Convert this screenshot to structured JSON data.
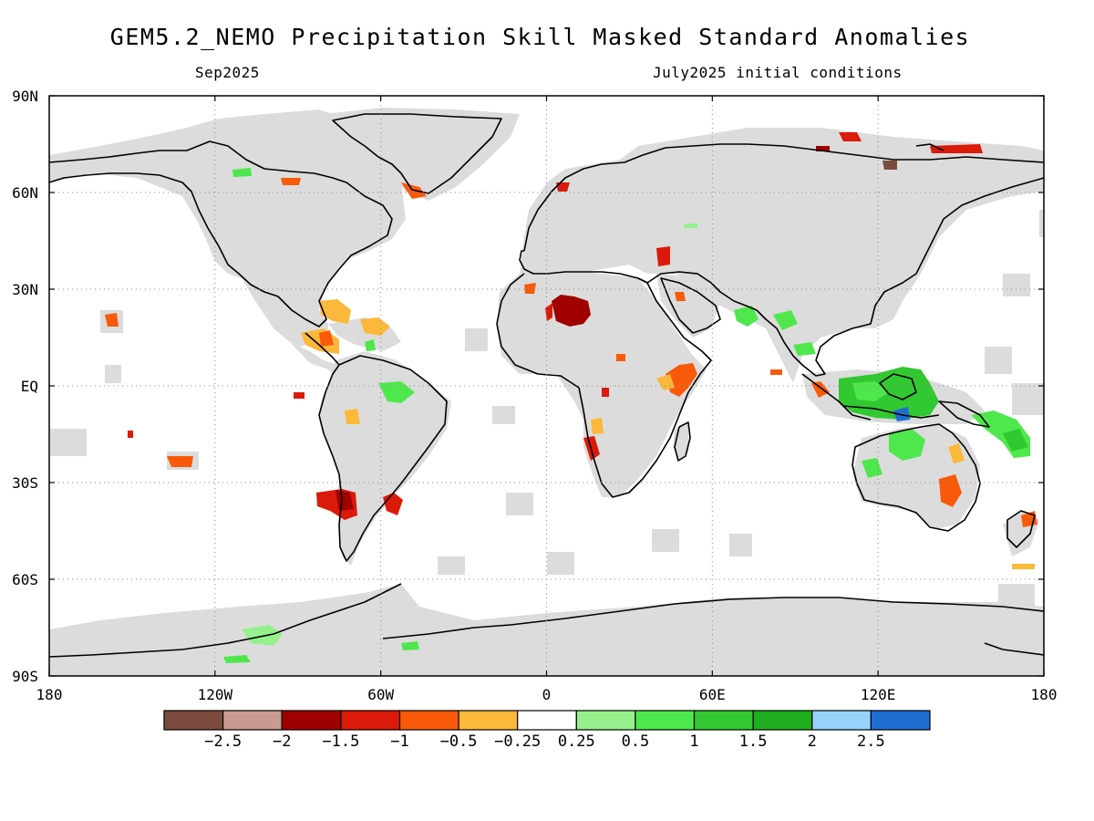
{
  "header": {
    "title": "GEM5.2_NEMO Precipitation Skill Masked Standard Anomalies",
    "valid_month": "Sep2025",
    "initial_conditions": "July2025 initial conditions"
  },
  "map": {
    "lon_range": [
      -180,
      180
    ],
    "lat_range": [
      -90,
      90
    ],
    "lon_ticks": [
      {
        "value": -180,
        "label": "180"
      },
      {
        "value": -120,
        "label": "120W"
      },
      {
        "value": -60,
        "label": "60W"
      },
      {
        "value": 0,
        "label": "0"
      },
      {
        "value": 60,
        "label": "60E"
      },
      {
        "value": 120,
        "label": "120E"
      },
      {
        "value": 180,
        "label": "180"
      }
    ],
    "lat_ticks": [
      {
        "value": 90,
        "label": "90N"
      },
      {
        "value": 60,
        "label": "60N"
      },
      {
        "value": 30,
        "label": "30N"
      },
      {
        "value": 0,
        "label": "EQ"
      },
      {
        "value": -30,
        "label": "30S"
      },
      {
        "value": -60,
        "label": "60S"
      },
      {
        "value": -90,
        "label": "90S"
      }
    ],
    "grid_lines": "dotted",
    "land_mask_color": "#dcdcdc",
    "coastline_color": "#000000"
  },
  "legend": {
    "colors": [
      "#7b4c3e",
      "#c99a8f",
      "#a00000",
      "#dc1a0a",
      "#f85a0a",
      "#fbb83a",
      "#ffffff",
      "#96f08c",
      "#4ee84c",
      "#32c832",
      "#1eae1e",
      "#96d2fa",
      "#1e6ed2"
    ],
    "labels": [
      "−2.5",
      "−2",
      "−1.5",
      "−1",
      "−0.5",
      "−0.25",
      "0.25",
      "0.5",
      "1",
      "1.5",
      "2",
      "2.5"
    ]
  },
  "anomaly_regions": [
    {
      "name": "sahara",
      "lon": 10,
      "lat": 23,
      "value": -1.7
    },
    {
      "name": "chile",
      "lon": -70,
      "lat": -35,
      "value": -1.3
    },
    {
      "name": "argentina",
      "lon": -57,
      "lat": -34,
      "value": -1.0
    },
    {
      "name": "east-africa",
      "lon": 42,
      "lat": -2,
      "value": -0.7
    },
    {
      "name": "caribbean",
      "lon": -75,
      "lat": 18,
      "value": -0.4
    },
    {
      "name": "central-america",
      "lon": -85,
      "lat": 14,
      "value": -0.3
    },
    {
      "name": "south-africa",
      "lon": 17,
      "lat": -26,
      "value": -1.0
    },
    {
      "name": "east-australia",
      "lon": 148,
      "lat": -35,
      "value": -0.7
    },
    {
      "name": "maritime-continent",
      "lon": 125,
      "lat": -3,
      "value": 1.2
    },
    {
      "name": "india",
      "lon": 78,
      "lat": 18,
      "value": 0.8
    },
    {
      "name": "melanesia",
      "lon": 160,
      "lat": -10,
      "value": 0.9
    },
    {
      "name": "northwest-australia",
      "lon": 125,
      "lat": -18,
      "value": 0.9
    },
    {
      "name": "amazon",
      "lon": -55,
      "lat": -3,
      "value": 0.7
    },
    {
      "name": "banda-sea",
      "lon": 130,
      "lat": -6,
      "value": 2.6
    },
    {
      "name": "antarctic-peninsula",
      "lon": -100,
      "lat": -75,
      "value": 0.6
    },
    {
      "name": "greenland-south",
      "lon": -45,
      "lat": 62,
      "value": -0.9
    },
    {
      "name": "siberia-east",
      "lon": 140,
      "lat": 68,
      "value": -2.6
    },
    {
      "name": "hawaii",
      "lon": -155,
      "lat": 20,
      "value": -0.6
    },
    {
      "name": "south-pacific",
      "lon": -130,
      "lat": -27,
      "value": -0.9
    }
  ]
}
